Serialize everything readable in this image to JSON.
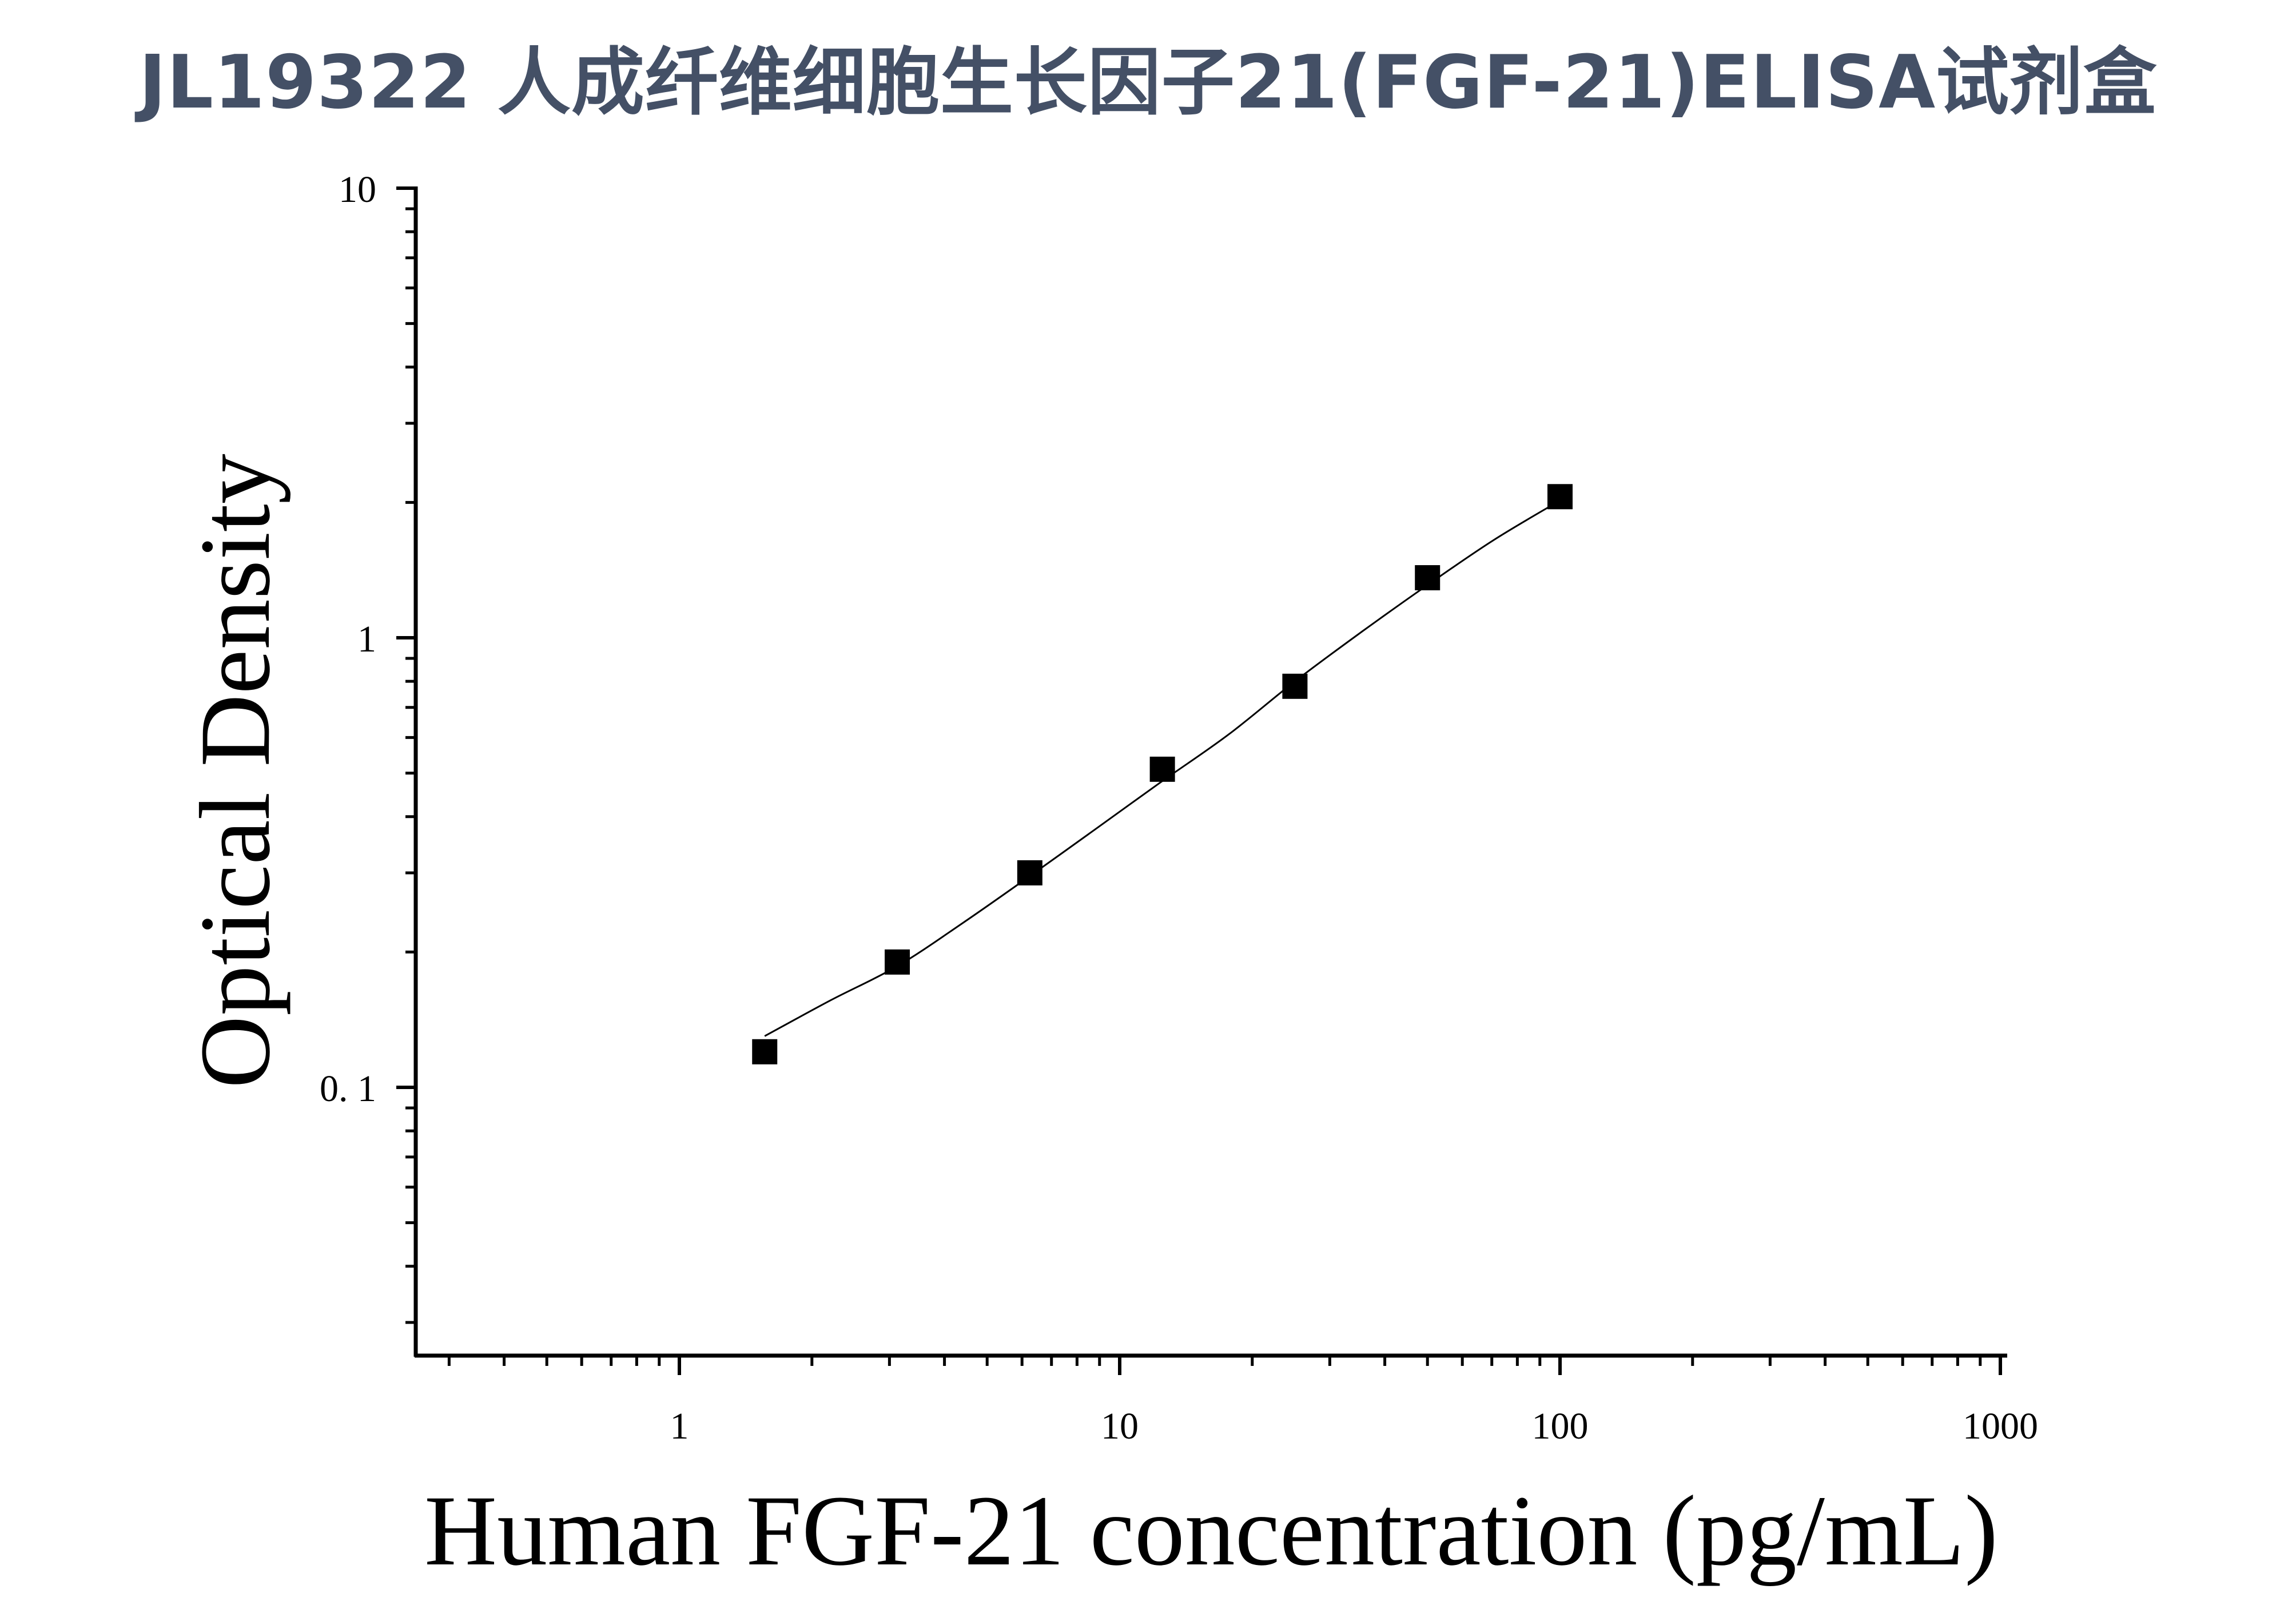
{
  "title": "JL19322 人成纤维细胞生长因子21(FGF-21)ELISA试剂盒",
  "colors": {
    "title": "#445066",
    "ink": "#000000"
  },
  "chart_data": {
    "type": "scatter",
    "title": "JL19322 人成纤维细胞生长因子21(FGF-21)ELISA试剂盒",
    "xlabel": "Human FGF-21 concentration (pg/mL)",
    "ylabel": "Optical Density",
    "xscale": "log",
    "yscale": "log",
    "xlim": [
      0.25,
      1000
    ],
    "ylim": [
      0.027,
      10
    ],
    "grid": false,
    "legend": "none",
    "x_ticks": [
      {
        "value": 1,
        "label": "1"
      },
      {
        "value": 10,
        "label": "10"
      },
      {
        "value": 100,
        "label": "100"
      },
      {
        "value": 1000,
        "label": "1000"
      }
    ],
    "y_ticks": [
      {
        "value": 0.1,
        "label": "0. 1"
      },
      {
        "value": 1,
        "label": "1"
      },
      {
        "value": 10,
        "label": "10"
      }
    ],
    "series": [
      {
        "marker": "square",
        "x": [
          1.5625,
          3.125,
          6.25,
          12.5,
          25,
          50,
          100
        ],
        "y": [
          0.12,
          0.19,
          0.3,
          0.51,
          0.78,
          1.36,
          2.06
        ]
      }
    ],
    "fit_curve": {
      "x": [
        1.5625,
        2.2,
        3.125,
        4.4,
        6.25,
        8.8,
        12.5,
        17.7,
        25,
        35.4,
        50,
        70.7,
        100
      ],
      "y": [
        0.13,
        0.156,
        0.186,
        0.232,
        0.295,
        0.375,
        0.48,
        0.61,
        0.8,
        1.03,
        1.31,
        1.65,
        2.02
      ]
    }
  }
}
